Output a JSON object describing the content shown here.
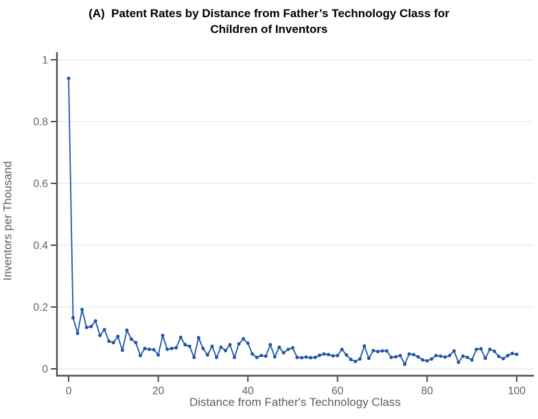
{
  "chart_data": {
    "type": "line",
    "title": "(A)  Patent Rates by Distance from Father’s Technology Class for Children of Inventors",
    "title_lines": [
      "(A)  Patent Rates by Distance from Father’s Technology Class for",
      "Children of Inventors"
    ],
    "xlabel": "Distance from Father's Technology Class",
    "ylabel": "Inventors per Thousand",
    "xlim": [
      -2.5,
      103
    ],
    "ylim": [
      0,
      1
    ],
    "xticks": [
      0,
      20,
      40,
      60,
      80,
      100
    ],
    "xtick_labels": [
      "0",
      "20",
      "40",
      "60",
      "80",
      "100"
    ],
    "yticks": [
      0,
      0.2,
      0.4,
      0.6,
      0.8,
      1
    ],
    "ytick_labels": [
      "0",
      "0.2",
      "0.4",
      "0.6",
      "0.8",
      "1"
    ],
    "grid": "horizontal",
    "legend": "none",
    "marker": "circle",
    "series": [
      {
        "name": "Children of Inventors",
        "x_start": 0,
        "x_step": 1,
        "values": [
          0.94,
          0.165,
          0.115,
          0.192,
          0.134,
          0.137,
          0.155,
          0.108,
          0.127,
          0.089,
          0.085,
          0.105,
          0.06,
          0.125,
          0.096,
          0.085,
          0.043,
          0.066,
          0.063,
          0.062,
          0.045,
          0.108,
          0.063,
          0.066,
          0.068,
          0.102,
          0.078,
          0.073,
          0.037,
          0.101,
          0.066,
          0.045,
          0.073,
          0.037,
          0.07,
          0.059,
          0.078,
          0.037,
          0.081,
          0.097,
          0.083,
          0.048,
          0.037,
          0.043,
          0.041,
          0.078,
          0.039,
          0.07,
          0.052,
          0.063,
          0.068,
          0.037,
          0.036,
          0.038,
          0.036,
          0.037,
          0.044,
          0.048,
          0.046,
          0.042,
          0.043,
          0.063,
          0.045,
          0.03,
          0.024,
          0.032,
          0.074,
          0.034,
          0.059,
          0.056,
          0.058,
          0.058,
          0.037,
          0.039,
          0.043,
          0.015,
          0.048,
          0.046,
          0.039,
          0.029,
          0.026,
          0.032,
          0.043,
          0.041,
          0.038,
          0.043,
          0.058,
          0.021,
          0.041,
          0.037,
          0.029,
          0.063,
          0.065,
          0.034,
          0.063,
          0.057,
          0.04,
          0.033,
          0.043,
          0.05,
          0.047
        ]
      }
    ]
  },
  "colors": {
    "line": "#1f55a4",
    "marker": "#1f55a4",
    "axis": "#4d4d4d",
    "tick_label": "#5d6066",
    "grid": "#e0ebf2",
    "title": "#000000"
  }
}
